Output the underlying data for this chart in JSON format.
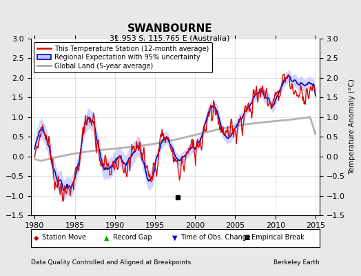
{
  "title": "SWANBOURNE",
  "subtitle": "31.953 S, 115.765 E (Australia)",
  "ylabel": "Temperature Anomaly (°C)",
  "xlabel_left": "Data Quality Controlled and Aligned at Breakpoints",
  "xlabel_right": "Berkeley Earth",
  "ylim": [
    -1.5,
    3.0
  ],
  "xlim": [
    1979.5,
    2015.5
  ],
  "yticks": [
    -1.5,
    -1.0,
    -0.5,
    0.0,
    0.5,
    1.0,
    1.5,
    2.0,
    2.5,
    3.0
  ],
  "xticks": [
    1980,
    1985,
    1990,
    1995,
    2000,
    2005,
    2010,
    2015
  ],
  "background_color": "#e8e8e8",
  "plot_bg_color": "#ffffff",
  "red_line_color": "#dd0000",
  "blue_line_color": "#0000bb",
  "blue_fill_color": "#c0c8ff",
  "gray_line_color": "#aaaaaa",
  "legend_items": [
    "This Temperature Station (12-month average)",
    "Regional Expectation with 95% uncertainty",
    "Global Land (5-year average)"
  ],
  "empirical_break_year": 1997.8,
  "title_fontsize": 11,
  "subtitle_fontsize": 8,
  "tick_fontsize": 8,
  "label_fontsize": 7.5
}
